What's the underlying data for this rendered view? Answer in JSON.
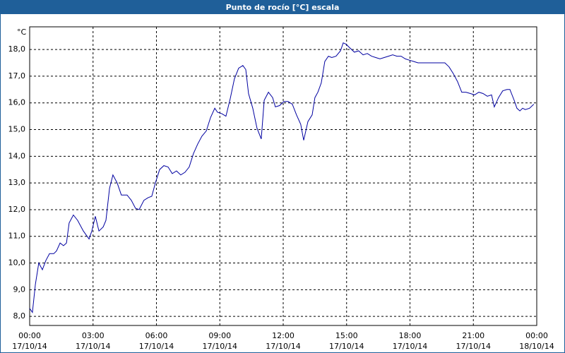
{
  "chart_data": {
    "type": "line",
    "title": "Punto de rocío [°C] escala",
    "y_unit": "°C",
    "x": [
      0,
      0.13,
      0.27,
      0.43,
      0.6,
      0.77,
      0.94,
      1.14,
      1.27,
      1.44,
      1.6,
      1.74,
      1.87,
      2.07,
      2.27,
      2.54,
      2.81,
      2.94,
      3.11,
      3.28,
      3.48,
      3.61,
      3.78,
      3.94,
      4.14,
      4.34,
      4.61,
      4.81,
      5.01,
      5.18,
      5.41,
      5.61,
      5.78,
      5.95,
      6.15,
      6.35,
      6.55,
      6.75,
      6.95,
      7.15,
      7.35,
      7.55,
      7.75,
      7.95,
      8.15,
      8.36,
      8.56,
      8.76,
      8.89,
      9.09,
      9.29,
      9.49,
      9.69,
      9.89,
      10.09,
      10.23,
      10.36,
      10.56,
      10.76,
      10.96,
      11.1,
      11.3,
      11.5,
      11.63,
      11.83,
      12.03,
      12.23,
      12.43,
      12.63,
      12.83,
      12.97,
      13.17,
      13.37,
      13.5,
      13.64,
      13.8,
      13.97,
      14.14,
      14.3,
      14.5,
      14.71,
      14.84,
      14.97,
      15.17,
      15.37,
      15.57,
      15.78,
      15.98,
      16.18,
      16.38,
      16.58,
      16.78,
      16.98,
      17.18,
      17.38,
      17.58,
      17.78,
      17.98,
      18.18,
      18.38,
      18.58,
      18.78,
      19.32,
      19.65,
      19.85,
      20.05,
      20.25,
      20.45,
      20.65,
      20.86,
      21.06,
      21.26,
      21.46,
      21.66,
      21.86,
      21.99,
      22.19,
      22.39,
      22.59,
      22.73,
      22.93,
      23.06,
      23.2,
      23.33,
      23.46,
      23.66,
      23.86
    ],
    "values": [
      8.3,
      8.15,
      9.2,
      10.0,
      9.75,
      10.1,
      10.35,
      10.35,
      10.45,
      10.75,
      10.65,
      10.75,
      11.5,
      11.8,
      11.6,
      11.2,
      10.9,
      11.2,
      11.75,
      11.2,
      11.35,
      11.6,
      12.8,
      13.3,
      13.0,
      12.55,
      12.55,
      12.35,
      12.05,
      12.0,
      12.35,
      12.45,
      12.5,
      13.0,
      13.5,
      13.65,
      13.6,
      13.35,
      13.45,
      13.3,
      13.4,
      13.6,
      14.1,
      14.45,
      14.75,
      14.95,
      15.45,
      15.8,
      15.65,
      15.6,
      15.5,
      16.15,
      16.9,
      17.3,
      17.4,
      17.25,
      16.35,
      15.8,
      15.05,
      14.65,
      16.1,
      16.4,
      16.2,
      15.85,
      15.9,
      16.05,
      16.05,
      15.95,
      15.55,
      15.2,
      14.6,
      15.3,
      15.55,
      16.2,
      16.4,
      16.75,
      17.55,
      17.75,
      17.7,
      17.75,
      17.95,
      18.25,
      18.2,
      18.05,
      17.9,
      17.95,
      17.8,
      17.85,
      17.75,
      17.7,
      17.65,
      17.7,
      17.75,
      17.8,
      17.75,
      17.75,
      17.65,
      17.6,
      17.55,
      17.5,
      17.5,
      17.5,
      17.5,
      17.5,
      17.35,
      17.1,
      16.8,
      16.4,
      16.4,
      16.35,
      16.3,
      16.4,
      16.35,
      16.25,
      16.3,
      15.85,
      16.2,
      16.45,
      16.5,
      16.5,
      16.1,
      15.8,
      15.7,
      15.8,
      15.75,
      15.8,
      15.95
    ],
    "color": "#0000a0",
    "xlim": [
      0,
      24
    ],
    "xticks": [
      {
        "value": 0,
        "label": "00:00"
      },
      {
        "value": 3,
        "label": "03:00"
      },
      {
        "value": 6,
        "label": "06:00"
      },
      {
        "value": 9,
        "label": "09:00"
      },
      {
        "value": 12,
        "label": "12:00"
      },
      {
        "value": 15,
        "label": "15:00"
      },
      {
        "value": 18,
        "label": "18:00"
      },
      {
        "value": 21,
        "label": "21:00"
      },
      {
        "value": 24,
        "label": "00:00"
      }
    ],
    "xtick_dates": [
      "17/10/14",
      "17/10/14",
      "17/10/14",
      "17/10/14",
      "17/10/14",
      "17/10/14",
      "17/10/14",
      "17/10/14",
      "18/10/14"
    ],
    "ylim": [
      7.66,
      18.85
    ],
    "yticks": [
      {
        "value": 8,
        "label": "8,0"
      },
      {
        "value": 9,
        "label": "9,0"
      },
      {
        "value": 10,
        "label": "10,0"
      },
      {
        "value": 11,
        "label": "11,0"
      },
      {
        "value": 12,
        "label": "12,0"
      },
      {
        "value": 13,
        "label": "13,0"
      },
      {
        "value": 14,
        "label": "14,0"
      },
      {
        "value": 15,
        "label": "15,0"
      },
      {
        "value": 16,
        "label": "16,0"
      },
      {
        "value": 17,
        "label": "17,0"
      },
      {
        "value": 18,
        "label": "18,0"
      }
    ],
    "grid": true
  }
}
